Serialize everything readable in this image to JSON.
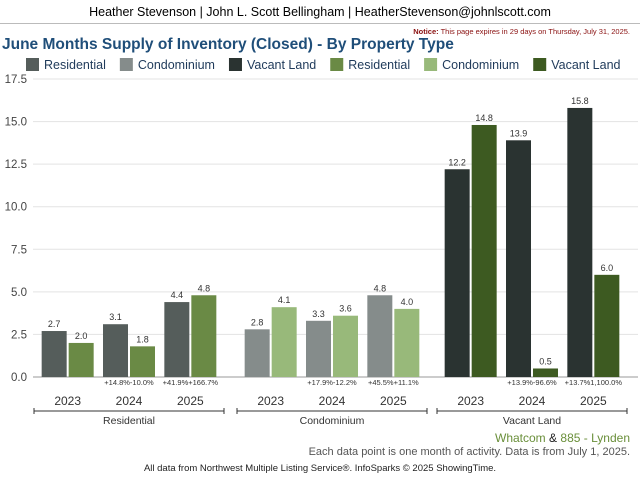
{
  "header": {
    "text": "Heather Stevenson | John L. Scott Bellingham | HeatherStevenson@johnlscott.com"
  },
  "notice": {
    "label": "Notice:",
    "text": "This page expires in 29 days on Thursday, July 31, 2025."
  },
  "footer": {
    "region_a": "Whatcom",
    "region_sep": "&",
    "region_b": "885 - Lynden",
    "note": "Each data point is one month of activity. Data is from July 1, 2025.",
    "source": "All data from Northwest Multiple Listing Service®. InfoSparks © 2025 ShowingTime."
  },
  "colors": {
    "title": "#1f4e79",
    "region_a": "#6a8f3a",
    "region_b": "#6a8f3a"
  },
  "chart_data": {
    "type": "bar",
    "title": "June Months Supply of Inventory (Closed) - By Property Type",
    "ylim": [
      0,
      17.5
    ],
    "yticks": [
      "0.0",
      "2.5",
      "5.0",
      "7.5",
      "10.0",
      "12.5",
      "15.0",
      "17.5"
    ],
    "ytick_values": [
      0,
      2.5,
      5,
      7.5,
      10,
      12.5,
      15,
      17.5
    ],
    "grid": true,
    "legend_position": "top",
    "legend": [
      {
        "name": "Residential",
        "color": "#555d5b"
      },
      {
        "name": "Condominium",
        "color": "#858c8b"
      },
      {
        "name": "Vacant Land",
        "color": "#2a3331"
      },
      {
        "name": "Residential",
        "color": "#6a8a45"
      },
      {
        "name": "Condominium",
        "color": "#98b97a"
      },
      {
        "name": "Vacant Land",
        "color": "#3d5a21"
      }
    ],
    "groups": [
      {
        "label": "Residential",
        "colors": [
          "#555d5b",
          "#6a8a45"
        ],
        "years": [
          {
            "year": "2023",
            "values": [
              2.7,
              2.0
            ],
            "labels": [
              "2.7",
              "2.0"
            ],
            "change": ""
          },
          {
            "year": "2024",
            "values": [
              3.1,
              1.8
            ],
            "labels": [
              "3.1",
              "1.8"
            ],
            "change": "+14.8%-10.0%"
          },
          {
            "year": "2025",
            "values": [
              4.4,
              4.8
            ],
            "labels": [
              "4.4",
              "4.8"
            ],
            "change": "+41.9%+166.7%"
          }
        ]
      },
      {
        "label": "Condominium",
        "colors": [
          "#858c8b",
          "#98b97a"
        ],
        "years": [
          {
            "year": "2023",
            "values": [
              2.8,
              4.1
            ],
            "labels": [
              "2.8",
              "4.1"
            ],
            "change": ""
          },
          {
            "year": "2024",
            "values": [
              3.3,
              3.6
            ],
            "labels": [
              "3.3",
              "3.6"
            ],
            "change": "+17.9%-12.2%"
          },
          {
            "year": "2025",
            "values": [
              4.8,
              4.0
            ],
            "labels": [
              "4.8",
              "4.0"
            ],
            "change": "+45.5%+11.1%"
          }
        ]
      },
      {
        "label": "Vacant Land",
        "colors": [
          "#2a3331",
          "#3d5a21"
        ],
        "years": [
          {
            "year": "2023",
            "values": [
              12.2,
              14.8
            ],
            "labels": [
              "12.2",
              "14.8"
            ],
            "change": ""
          },
          {
            "year": "2024",
            "values": [
              13.9,
              0.5
            ],
            "labels": [
              "13.9",
              "0.5"
            ],
            "change": "+13.9%-96.6%"
          },
          {
            "year": "2025",
            "values": [
              15.8,
              6.0
            ],
            "labels": [
              "15.8",
              "6.0"
            ],
            "change": "+13.7%1,100.0%"
          }
        ]
      }
    ]
  }
}
